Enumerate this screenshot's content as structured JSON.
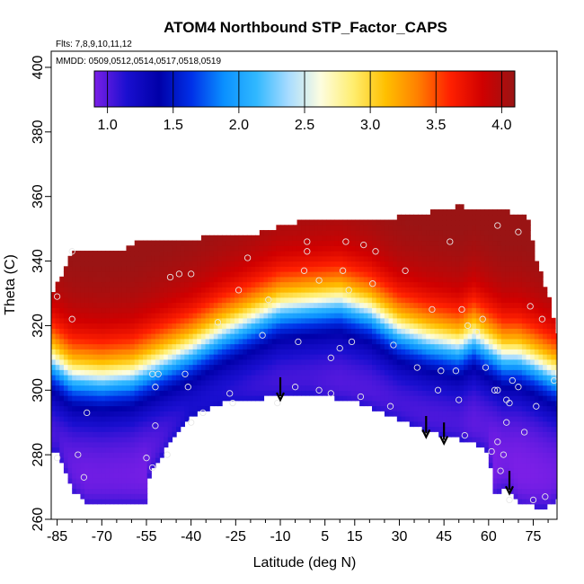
{
  "chart_data": {
    "type": "heatmap",
    "title": "ATOM4 Northbound STP_Factor_CAPS",
    "flights_note": "Flts: 7,8,9,10,11,12",
    "dates_note": "MMDD: 0509,0512,0514,0517,0518,0519",
    "xlabel": "Latitude (deg N)",
    "ylabel": "Theta (C)",
    "xlim": [
      -87,
      83
    ],
    "ylim": [
      260,
      405
    ],
    "x_ticks": [
      -85,
      -70,
      -55,
      -40,
      -25,
      -10,
      5,
      15,
      30,
      45,
      60,
      75
    ],
    "x_tick_labels": [
      "-85",
      "-70",
      "-55",
      "-40",
      "-25",
      "-10",
      "5",
      "15",
      "30",
      "45",
      "60",
      "75"
    ],
    "y_ticks": [
      260,
      280,
      300,
      320,
      340,
      360,
      380,
      400
    ],
    "y_tick_labels": [
      "260",
      "280",
      "300",
      "320",
      "340",
      "360",
      "380",
      "400"
    ],
    "colorbar": {
      "range": [
        0.9,
        4.1
      ],
      "ticks": [
        1.0,
        1.5,
        2.0,
        2.5,
        3.0,
        3.5,
        4.0
      ],
      "tick_labels": [
        "1.0",
        "1.5",
        "2.0",
        "2.5",
        "3.0",
        "3.5",
        "4.0"
      ],
      "colors": [
        "#7a1fe6",
        "#1a0fd0",
        "#0000a8",
        "#0030e8",
        "#0a90ff",
        "#30b8ff",
        "#a8dcff",
        "#fdfde0",
        "#ffee70",
        "#ffc000",
        "#ff8000",
        "#ff2000",
        "#d00000",
        "#9a1414"
      ]
    },
    "top_boundary": [
      [
        -87,
        329
      ],
      [
        -80,
        343
      ],
      [
        -65,
        343
      ],
      [
        -55,
        347
      ],
      [
        -40,
        347
      ],
      [
        -20,
        348
      ],
      [
        -5,
        352
      ],
      [
        10,
        353
      ],
      [
        25,
        353
      ],
      [
        40,
        355
      ],
      [
        50,
        357
      ],
      [
        60,
        356
      ],
      [
        68,
        355
      ],
      [
        73,
        355
      ],
      [
        76,
        340
      ],
      [
        80,
        330
      ],
      [
        83,
        318
      ]
    ],
    "bottom_boundary": [
      [
        -85,
        281
      ],
      [
        -80,
        269
      ],
      [
        -75,
        265
      ],
      [
        -55,
        265
      ],
      [
        -54,
        274
      ],
      [
        -47,
        284
      ],
      [
        -40,
        292
      ],
      [
        -30,
        296
      ],
      [
        -20,
        297
      ],
      [
        -10,
        298.5
      ],
      [
        0,
        299
      ],
      [
        5,
        298
      ],
      [
        12,
        297
      ],
      [
        20,
        295
      ],
      [
        30,
        291
      ],
      [
        40,
        287
      ],
      [
        50,
        285
      ],
      [
        57,
        283
      ],
      [
        60,
        281
      ],
      [
        62,
        268
      ],
      [
        66,
        270
      ],
      [
        70,
        265
      ],
      [
        75,
        264
      ],
      [
        80,
        264
      ],
      [
        83,
        266
      ]
    ],
    "midline_25": [
      [
        -87,
        310
      ],
      [
        -80,
        305
      ],
      [
        -70,
        304
      ],
      [
        -60,
        305
      ],
      [
        -50,
        309
      ],
      [
        -40,
        313
      ],
      [
        -30,
        318
      ],
      [
        -20,
        322
      ],
      [
        -10,
        326
      ],
      [
        0,
        327
      ],
      [
        10,
        328
      ],
      [
        20,
        325
      ],
      [
        25,
        322
      ],
      [
        30,
        319
      ],
      [
        40,
        316
      ],
      [
        50,
        314
      ],
      [
        55,
        317
      ],
      [
        60,
        314
      ],
      [
        65,
        311
      ],
      [
        70,
        311
      ],
      [
        75,
        309
      ],
      [
        83,
        305
      ]
    ],
    "flight_arrows": [
      {
        "lat": -10,
        "theta_top": 304,
        "theta_tip": 297
      },
      {
        "lat": 39,
        "theta_top": 292,
        "theta_tip": 285.5
      },
      {
        "lat": 45,
        "theta_top": 290,
        "theta_tip": 283.5
      },
      {
        "lat": 67,
        "theta_top": 275,
        "theta_tip": 268
      }
    ],
    "sample_points": [
      [
        -85,
        329
      ],
      [
        -80,
        322
      ],
      [
        -80,
        343
      ],
      [
        -85,
        279
      ],
      [
        -78,
        280
      ],
      [
        -76,
        273
      ],
      [
        -75,
        293
      ],
      [
        -55,
        279
      ],
      [
        -53,
        305
      ],
      [
        -52,
        301
      ],
      [
        -51,
        305
      ],
      [
        -52,
        289
      ],
      [
        -53,
        276
      ],
      [
        -48,
        280
      ],
      [
        -47,
        335
      ],
      [
        -44,
        336
      ],
      [
        -42,
        305
      ],
      [
        -41,
        301
      ],
      [
        -40,
        336
      ],
      [
        -40,
        290
      ],
      [
        -36,
        293
      ],
      [
        -31,
        321
      ],
      [
        -27,
        299
      ],
      [
        -26,
        296
      ],
      [
        -24,
        331
      ],
      [
        -21,
        341
      ],
      [
        -16,
        317
      ],
      [
        -14,
        328
      ],
      [
        -11,
        296
      ],
      [
        -5,
        301
      ],
      [
        -4,
        315
      ],
      [
        -2,
        337
      ],
      [
        -1,
        346
      ],
      [
        -1,
        343
      ],
      [
        3,
        300
      ],
      [
        3,
        334
      ],
      [
        7,
        299
      ],
      [
        7,
        310
      ],
      [
        10,
        313
      ],
      [
        11,
        337
      ],
      [
        12,
        346
      ],
      [
        13,
        331
      ],
      [
        14,
        315
      ],
      [
        17,
        298
      ],
      [
        18,
        345
      ],
      [
        21,
        333
      ],
      [
        22,
        343
      ],
      [
        27,
        295
      ],
      [
        28,
        314
      ],
      [
        32,
        337
      ],
      [
        36,
        307
      ],
      [
        41,
        325
      ],
      [
        43,
        300
      ],
      [
        47,
        346
      ],
      [
        44,
        306
      ],
      [
        49,
        306
      ],
      [
        50,
        297
      ],
      [
        52,
        286
      ],
      [
        51,
        325
      ],
      [
        53,
        320
      ],
      [
        56,
        318
      ],
      [
        58,
        322
      ],
      [
        59,
        307
      ],
      [
        61,
        281
      ],
      [
        62,
        300
      ],
      [
        63,
        300
      ],
      [
        63,
        351
      ],
      [
        63,
        284
      ],
      [
        64,
        275
      ],
      [
        65,
        280
      ],
      [
        66,
        297
      ],
      [
        66,
        290
      ],
      [
        67,
        296
      ],
      [
        67,
        266
      ],
      [
        68,
        303
      ],
      [
        70,
        301
      ],
      [
        70,
        349
      ],
      [
        72,
        287
      ],
      [
        74,
        326
      ],
      [
        75,
        266
      ],
      [
        76,
        295
      ],
      [
        78,
        322
      ],
      [
        79,
        267
      ],
      [
        82,
        303
      ]
    ]
  }
}
